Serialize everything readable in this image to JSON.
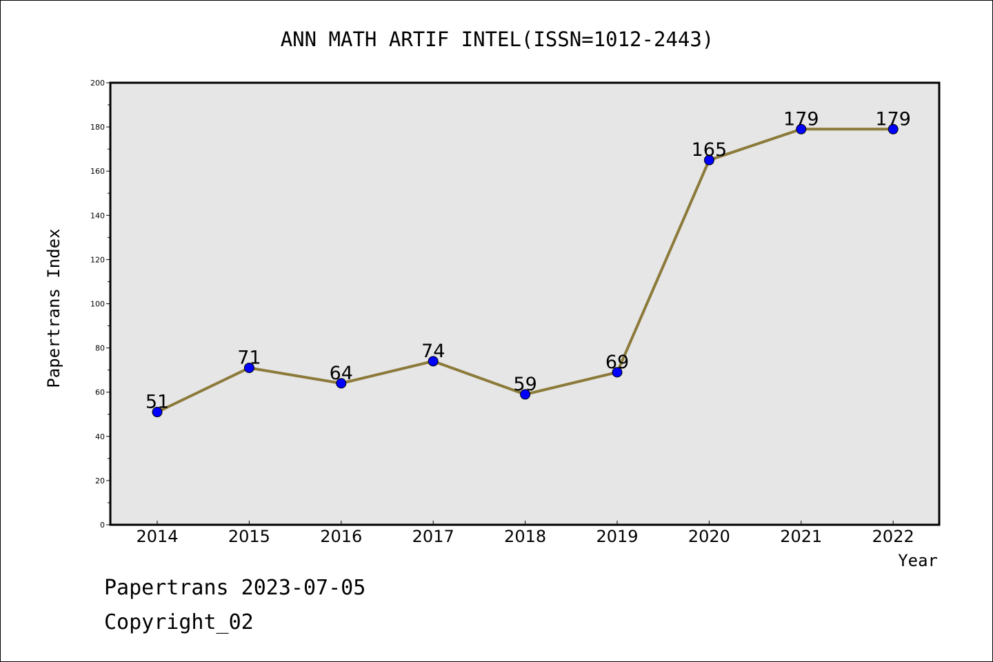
{
  "chart_data": {
    "type": "line",
    "title": "ANN MATH ARTIF INTEL(ISSN=1012-2443)",
    "xlabel": "Year",
    "ylabel": "Papertrans Index",
    "categories": [
      "2014",
      "2015",
      "2016",
      "2017",
      "2018",
      "2019",
      "2020",
      "2021",
      "2022"
    ],
    "series": [
      {
        "values": [
          51,
          71,
          64,
          74,
          59,
          69,
          165,
          179,
          179
        ]
      }
    ],
    "data_labels": [
      "51",
      "71",
      "64",
      "74",
      "59",
      "69",
      "165",
      "179",
      "179"
    ],
    "ylim": [
      0,
      200
    ],
    "yticks": [
      0,
      20,
      40,
      60,
      80,
      100,
      120,
      140,
      160,
      180,
      200
    ],
    "grid": false,
    "legend": "none",
    "colors": {
      "line": "#8c7a3a",
      "marker": "#0000ff",
      "plot_background": "#e6e6e6"
    }
  },
  "footer": {
    "line1": "Papertrans 2023-07-05",
    "line2": "Copyright_02"
  }
}
